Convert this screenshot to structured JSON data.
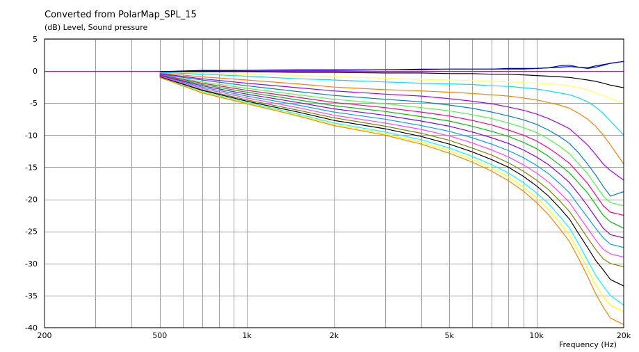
{
  "chart_data": {
    "type": "line",
    "title": "Converted from PolarMap_SPL_15",
    "ylabel": "(dB)  Level, Sound pressure",
    "xlabel": "Frequency  (Hz)",
    "x_scale": "log",
    "xlim": [
      200,
      20000
    ],
    "ylim": [
      -40,
      5
    ],
    "x_ticks": [
      {
        "value": 200,
        "label": "200"
      },
      {
        "value": 500,
        "label": "500"
      },
      {
        "value": 1000,
        "label": "1k"
      },
      {
        "value": 2000,
        "label": "2k"
      },
      {
        "value": 5000,
        "label": "5k"
      },
      {
        "value": 10000,
        "label": "10k"
      },
      {
        "value": 20000,
        "label": "20k"
      }
    ],
    "x_grid": [
      300,
      400,
      500,
      600,
      700,
      800,
      900,
      1000,
      2000,
      3000,
      4000,
      5000,
      6000,
      7000,
      8000,
      9000,
      10000
    ],
    "y_ticks": [
      5,
      0,
      -5,
      -10,
      -15,
      -20,
      -25,
      -30,
      -35,
      -40
    ],
    "grid": true,
    "x": [
      500,
      700,
      1000,
      1500,
      2000,
      3000,
      4000,
      5000,
      6000,
      7000,
      8000,
      9000,
      10000,
      11000,
      12000,
      13000,
      14000,
      15000,
      16000,
      17000,
      18000,
      20000
    ],
    "series": [
      {
        "color": "#000080",
        "values": [
          -0.1,
          0.1,
          0.1,
          0.2,
          0.2,
          0.2,
          0.3,
          0.3,
          0.3,
          0.3,
          0.4,
          0.4,
          0.4,
          0.5,
          0.6,
          0.7,
          0.6,
          0.5,
          0.8,
          1.0,
          1.2,
          1.5
        ]
      },
      {
        "color": "#0000ff",
        "values": [
          -0.1,
          0.0,
          0.1,
          0.1,
          0.1,
          0.2,
          0.2,
          0.3,
          0.3,
          0.3,
          0.3,
          0.3,
          0.4,
          0.5,
          0.8,
          0.9,
          0.6,
          0.4,
          0.6,
          0.9,
          1.2,
          1.5
        ]
      },
      {
        "color": "#000000",
        "values": [
          -0.1,
          -0.1,
          -0.1,
          -0.2,
          -0.2,
          -0.3,
          -0.3,
          -0.4,
          -0.4,
          -0.5,
          -0.5,
          -0.6,
          -0.7,
          -0.8,
          -0.9,
          -1.0,
          -1.2,
          -1.4,
          -1.6,
          -1.9,
          -2.2,
          -2.6
        ]
      },
      {
        "color": "#ffff60",
        "values": [
          -0.2,
          -0.3,
          -0.5,
          -0.7,
          -0.9,
          -1.1,
          -1.3,
          -1.4,
          -1.5,
          -1.6,
          -1.7,
          -1.8,
          -1.9,
          -2.0,
          -2.1,
          -2.3,
          -2.6,
          -2.9,
          -3.4,
          -3.8,
          -4.3,
          -5.0
        ]
      },
      {
        "color": "#00dcff",
        "values": [
          -0.2,
          -0.5,
          -0.8,
          -1.2,
          -1.4,
          -1.7,
          -1.9,
          -2.0,
          -2.1,
          -2.3,
          -2.4,
          -2.6,
          -2.8,
          -3.1,
          -3.4,
          -3.7,
          -4.2,
          -4.8,
          -5.6,
          -6.6,
          -7.8,
          -10.0
        ]
      },
      {
        "color": "#ff8000",
        "values": [
          -0.3,
          -0.9,
          -1.4,
          -2.0,
          -2.5,
          -2.9,
          -3.1,
          -3.3,
          -3.5,
          -3.7,
          -3.9,
          -4.2,
          -4.5,
          -4.9,
          -5.3,
          -5.8,
          -6.6,
          -7.5,
          -8.6,
          -10.0,
          -11.5,
          -14.5
        ]
      },
      {
        "color": "#a000ff",
        "values": [
          -0.4,
          -1.2,
          -1.9,
          -2.6,
          -3.1,
          -3.6,
          -3.9,
          -4.3,
          -4.7,
          -5.1,
          -5.6,
          -6.1,
          -6.7,
          -7.4,
          -8.2,
          -9.0,
          -10.3,
          -11.5,
          -13.0,
          -14.5,
          -15.5,
          -17.0
        ]
      },
      {
        "color": "#0080c0",
        "values": [
          -0.5,
          -1.4,
          -2.3,
          -3.2,
          -3.8,
          -4.4,
          -4.8,
          -5.3,
          -5.8,
          -6.4,
          -7.0,
          -7.6,
          -8.3,
          -9.2,
          -10.2,
          -11.3,
          -12.8,
          -14.5,
          -16.2,
          -18.0,
          -19.5,
          -18.8
        ]
      },
      {
        "color": "#40ff40",
        "values": [
          -0.6,
          -1.7,
          -2.7,
          -3.7,
          -4.4,
          -5.1,
          -5.7,
          -6.2,
          -6.8,
          -7.4,
          -8.1,
          -8.8,
          -9.6,
          -10.6,
          -11.7,
          -12.9,
          -14.5,
          -16.0,
          -17.8,
          -19.5,
          -20.5,
          -21.0
        ]
      },
      {
        "color": "#ff0080",
        "values": [
          -0.6,
          -1.9,
          -3.0,
          -4.1,
          -4.9,
          -5.7,
          -6.4,
          -7.0,
          -7.7,
          -8.4,
          -9.2,
          -10.0,
          -10.9,
          -12.0,
          -13.2,
          -14.4,
          -16.0,
          -17.5,
          -19.3,
          -21.0,
          -22.0,
          -22.5
        ]
      },
      {
        "color": "#00c000",
        "values": [
          -0.7,
          -2.1,
          -3.3,
          -4.5,
          -5.4,
          -6.3,
          -7.1,
          -7.8,
          -8.6,
          -9.4,
          -10.2,
          -11.1,
          -12.1,
          -13.3,
          -14.6,
          -15.9,
          -17.5,
          -19.0,
          -20.8,
          -22.5,
          -23.5,
          -24.5
        ]
      },
      {
        "color": "#8000ff",
        "values": [
          -0.7,
          -2.3,
          -3.6,
          -4.9,
          -5.9,
          -6.9,
          -7.8,
          -8.6,
          -9.5,
          -10.4,
          -11.3,
          -12.3,
          -13.4,
          -14.6,
          -16.0,
          -17.4,
          -19.2,
          -21.0,
          -22.8,
          -24.5,
          -25.5,
          -26.0
        ]
      },
      {
        "color": "#00a0ff",
        "values": [
          -0.8,
          -2.5,
          -3.9,
          -5.3,
          -6.4,
          -7.5,
          -8.5,
          -9.4,
          -10.4,
          -11.4,
          -12.4,
          -13.5,
          -14.7,
          -16.0,
          -17.5,
          -19.0,
          -21.0,
          -22.8,
          -24.5,
          -26.0,
          -27.0,
          -27.5
        ]
      },
      {
        "color": "#ff40ff",
        "values": [
          -0.8,
          -2.7,
          -4.2,
          -5.7,
          -6.9,
          -8.1,
          -9.1,
          -10.1,
          -11.2,
          -12.3,
          -13.4,
          -14.6,
          -15.9,
          -17.3,
          -18.9,
          -20.5,
          -22.6,
          -24.5,
          -26.3,
          -27.8,
          -28.5,
          -29.0
        ]
      },
      {
        "color": "#808000",
        "values": [
          -0.9,
          -2.9,
          -4.5,
          -6.1,
          -7.3,
          -8.6,
          -9.7,
          -10.8,
          -12.0,
          -13.1,
          -14.3,
          -15.6,
          -17.0,
          -18.5,
          -20.2,
          -21.9,
          -24.0,
          -26.0,
          -27.8,
          -29.3,
          -30.0,
          -30.5
        ]
      },
      {
        "color": "#000000",
        "values": [
          -0.9,
          -3.0,
          -4.7,
          -6.4,
          -7.7,
          -9.0,
          -10.2,
          -11.4,
          -12.6,
          -13.8,
          -15.0,
          -16.4,
          -17.9,
          -19.5,
          -21.3,
          -23.1,
          -25.4,
          -27.5,
          -29.5,
          -31.0,
          -32.5,
          -33.5
        ]
      },
      {
        "color": "#00ffff",
        "values": [
          -1.0,
          -3.2,
          -4.9,
          -6.7,
          -8.1,
          -9.5,
          -10.7,
          -12.0,
          -13.3,
          -14.6,
          -15.9,
          -17.4,
          -19.0,
          -20.7,
          -22.6,
          -24.5,
          -27.0,
          -29.5,
          -31.8,
          -33.5,
          -35.0,
          -36.5
        ]
      },
      {
        "color": "#ffff00",
        "values": [
          -1.0,
          -3.3,
          -5.0,
          -6.9,
          -8.3,
          -9.8,
          -11.1,
          -12.4,
          -13.8,
          -15.1,
          -16.5,
          -18.1,
          -19.8,
          -21.6,
          -23.6,
          -25.6,
          -28.2,
          -30.8,
          -33.3,
          -35.2,
          -36.5,
          -37.5
        ]
      },
      {
        "color": "#ff8000",
        "values": [
          -1.0,
          -3.4,
          -5.1,
          -7.0,
          -8.5,
          -10.0,
          -11.4,
          -12.8,
          -14.2,
          -15.6,
          -17.1,
          -18.7,
          -20.5,
          -22.4,
          -24.5,
          -26.6,
          -29.3,
          -32.0,
          -34.7,
          -36.8,
          -38.5,
          -39.5
        ]
      }
    ]
  }
}
